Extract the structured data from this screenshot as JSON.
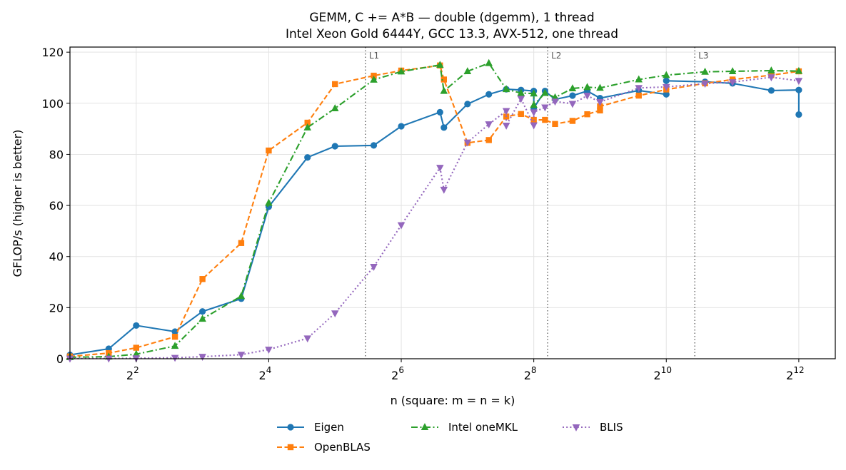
{
  "chart_data": {
    "type": "line",
    "title": "GEMM, C += A*B — double (dgemm), 1 thread",
    "subtitle": "Intel Xeon Gold 6444Y, GCC 13.3, AVX-512, one thread",
    "xlabel": "n (square: m = n = k)",
    "ylabel": "GFLOP/s (higher is better)",
    "xscale": "log2",
    "xlim": [
      2,
      6000
    ],
    "ylim": [
      0,
      122
    ],
    "xticks": [
      {
        "value": 4,
        "base": "2",
        "exp": "2"
      },
      {
        "value": 16,
        "base": "2",
        "exp": "4"
      },
      {
        "value": 64,
        "base": "2",
        "exp": "6"
      },
      {
        "value": 256,
        "base": "2",
        "exp": "8"
      },
      {
        "value": 1024,
        "base": "2",
        "exp": "10"
      },
      {
        "value": 4096,
        "base": "2",
        "exp": "12"
      }
    ],
    "yticks": [
      0,
      20,
      40,
      60,
      80,
      100,
      120
    ],
    "grid": true,
    "legend_position": "bottom-center",
    "cache_lines": [
      {
        "label": "L1",
        "x": 44
      },
      {
        "label": "L2",
        "x": 296
      },
      {
        "label": "L3",
        "x": 1380
      }
    ],
    "series": [
      {
        "name": "Eigen",
        "color": "#1f77b4",
        "marker": "circle",
        "dash": "solid",
        "points": [
          [
            2,
            1.5
          ],
          [
            3,
            3.9
          ],
          [
            4,
            13
          ],
          [
            6,
            10.6
          ],
          [
            8,
            18.5
          ],
          [
            12,
            23.5
          ],
          [
            16,
            59.5
          ],
          [
            24,
            78.8
          ],
          [
            32,
            83.2
          ],
          [
            48,
            83.5
          ],
          [
            64,
            91
          ],
          [
            96,
            96.5
          ],
          [
            100,
            90.5
          ],
          [
            128,
            99.7
          ],
          [
            160,
            103.5
          ],
          [
            192,
            105.5
          ],
          [
            224,
            105.2
          ],
          [
            256,
            104.8
          ],
          [
            256,
            98.2
          ],
          [
            288,
            104.8
          ],
          [
            320,
            101.5
          ],
          [
            384,
            103
          ],
          [
            448,
            104.8
          ],
          [
            512,
            102
          ],
          [
            768,
            105
          ],
          [
            1024,
            103.5
          ],
          [
            1024,
            108.8
          ],
          [
            1536,
            108.4
          ],
          [
            2048,
            107.8
          ],
          [
            3072,
            105
          ],
          [
            4096,
            105.2
          ],
          [
            4096,
            95.6
          ]
        ]
      },
      {
        "name": "OpenBLAS",
        "color": "#ff7f0e",
        "marker": "square",
        "dash": "dashed",
        "points": [
          [
            2,
            0.9
          ],
          [
            3,
            2.2
          ],
          [
            4,
            4.3
          ],
          [
            6,
            8.6
          ],
          [
            8,
            31.2
          ],
          [
            12,
            45.3
          ],
          [
            16,
            81.5
          ],
          [
            24,
            92.4
          ],
          [
            32,
            107.5
          ],
          [
            48,
            110.8
          ],
          [
            64,
            112.8
          ],
          [
            96,
            114.8
          ],
          [
            100,
            109.3
          ],
          [
            128,
            84.5
          ],
          [
            160,
            85.6
          ],
          [
            192,
            94.8
          ],
          [
            224,
            95.8
          ],
          [
            256,
            93.5
          ],
          [
            288,
            93.5
          ],
          [
            320,
            91.9
          ],
          [
            384,
            93.1
          ],
          [
            448,
            95.7
          ],
          [
            512,
            97.2
          ],
          [
            512,
            98.8
          ],
          [
            768,
            103
          ],
          [
            1024,
            105.4
          ],
          [
            1536,
            107.8
          ],
          [
            2048,
            109.3
          ],
          [
            3072,
            111
          ],
          [
            4096,
            112.5
          ]
        ]
      },
      {
        "name": "Intel oneMKL",
        "color": "#2ca02c",
        "marker": "triangle-up",
        "dash": "dashdot",
        "points": [
          [
            2,
            0.6
          ],
          [
            3,
            0.8
          ],
          [
            4,
            1.8
          ],
          [
            6,
            5
          ],
          [
            8,
            15.6
          ],
          [
            12,
            24.5
          ],
          [
            16,
            61
          ],
          [
            24,
            90.5
          ],
          [
            32,
            98
          ],
          [
            48,
            109.2
          ],
          [
            64,
            112.4
          ],
          [
            96,
            115
          ],
          [
            100,
            104.8
          ],
          [
            128,
            112.5
          ],
          [
            160,
            115.7
          ],
          [
            192,
            105.5
          ],
          [
            224,
            104
          ],
          [
            256,
            103.8
          ],
          [
            256,
            99.3
          ],
          [
            288,
            104
          ],
          [
            320,
            102.3
          ],
          [
            384,
            105.8
          ],
          [
            448,
            106.3
          ],
          [
            512,
            106
          ],
          [
            768,
            109.3
          ],
          [
            1024,
            111
          ],
          [
            1536,
            112.3
          ],
          [
            2048,
            112.5
          ],
          [
            3072,
            112.8
          ],
          [
            4096,
            112.6
          ]
        ]
      },
      {
        "name": "BLIS",
        "color": "#9467bd",
        "marker": "triangle-down",
        "dash": "dotted",
        "points": [
          [
            2,
            0.1
          ],
          [
            3,
            0.1
          ],
          [
            4,
            0.2
          ],
          [
            6,
            0.4
          ],
          [
            8,
            0.8
          ],
          [
            12,
            1.6
          ],
          [
            16,
            3.6
          ],
          [
            24,
            8
          ],
          [
            32,
            17.8
          ],
          [
            48,
            36
          ],
          [
            64,
            52.3
          ],
          [
            96,
            74.8
          ],
          [
            100,
            66.2
          ],
          [
            128,
            84.7
          ],
          [
            160,
            91.8
          ],
          [
            192,
            97
          ],
          [
            192,
            91.3
          ],
          [
            224,
            101.8
          ],
          [
            256,
            91.4
          ],
          [
            256,
            96.5
          ],
          [
            288,
            98.4
          ],
          [
            320,
            100.7
          ],
          [
            384,
            99.8
          ],
          [
            448,
            103
          ],
          [
            512,
            100.5
          ],
          [
            768,
            106
          ],
          [
            1024,
            106.4
          ],
          [
            1536,
            107.7
          ],
          [
            2048,
            108.3
          ],
          [
            3072,
            110.2
          ],
          [
            4096,
            108.8
          ]
        ]
      }
    ]
  }
}
